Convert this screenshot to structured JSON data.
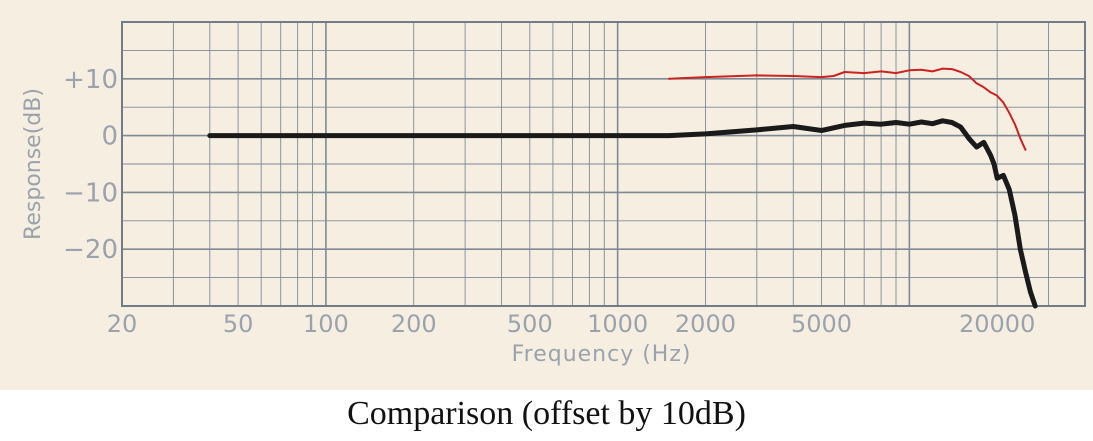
{
  "caption": "Comparison (offset by 10dB)",
  "chart_data": {
    "type": "line",
    "title": "",
    "xlabel": "Frequency (Hz)",
    "ylabel": "Response(dB)",
    "xscale": "log",
    "xlim": [
      20,
      40000
    ],
    "ylim": [
      -30,
      20
    ],
    "x_ticks": [
      20,
      50,
      100,
      200,
      500,
      1000,
      2000,
      5000,
      20000
    ],
    "x_tick_labels": [
      "20",
      "50",
      "100",
      "200",
      "500",
      "1000",
      "2000",
      "5000",
      "20000"
    ],
    "y_ticks": [
      10,
      0,
      -10,
      -20
    ],
    "y_tick_labels": [
      "+10",
      "0",
      "−10",
      "−20"
    ],
    "grid": true,
    "series": [
      {
        "color": "#1a1a1a",
        "x": [
          40,
          60,
          100,
          200,
          400,
          700,
          1000,
          1500,
          2000,
          3000,
          4000,
          5000,
          6000,
          7000,
          8000,
          9000,
          10000,
          11000,
          12000,
          13000,
          14000,
          15000,
          16000,
          17000,
          18000,
          19000,
          19500,
          20000,
          21000,
          22000,
          23000,
          24000,
          25000,
          26000,
          27000
        ],
        "y": [
          0,
          0,
          0,
          0,
          0,
          0,
          0,
          0,
          0.3,
          1.0,
          1.6,
          0.9,
          1.8,
          2.2,
          2.0,
          2.3,
          2.0,
          2.4,
          2.1,
          2.6,
          2.3,
          1.5,
          -0.5,
          -2.0,
          -1.2,
          -3.5,
          -5.0,
          -7.5,
          -7.0,
          -9.5,
          -14.0,
          -20.0,
          -24.0,
          -27.5,
          -30.0
        ]
      },
      {
        "color": "#cc2222",
        "x": [
          1500,
          2000,
          3000,
          4000,
          5000,
          5500,
          6000,
          7000,
          8000,
          9000,
          10000,
          11000,
          12000,
          13000,
          14000,
          15000,
          16000,
          17000,
          18000,
          19000,
          20000,
          21000,
          22000,
          23000,
          24000,
          25000
        ],
        "y": [
          10.0,
          10.3,
          10.6,
          10.5,
          10.3,
          10.5,
          11.2,
          11.0,
          11.3,
          11.0,
          11.5,
          11.6,
          11.3,
          11.8,
          11.7,
          11.2,
          10.5,
          9.2,
          8.5,
          7.6,
          7.0,
          5.8,
          4.0,
          2.0,
          -0.5,
          -2.5
        ]
      }
    ],
    "annotations": []
  }
}
